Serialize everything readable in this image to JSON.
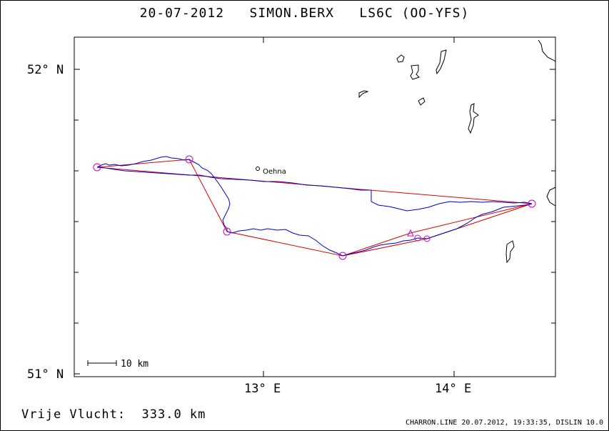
{
  "title": "20-07-2012   SIMON.BERX   LS6C (OO-YFS)",
  "axes": {
    "lat_labels": [
      "52° N",
      "51° N"
    ],
    "lon_labels": [
      "13° E",
      "14° E"
    ]
  },
  "place_label": "Oehna",
  "scale_bar_label": "10 km",
  "footer": {
    "flight_summary": "Vrije Vlucht:  333.0 km",
    "credit": "CHARRON.LINE 20.07.2012, 19:33:35, DISLIN 10.0"
  },
  "colors": {
    "track": "#0000cc",
    "task_line": "#dd0000",
    "turnpoint": "#cc00cc",
    "coast": "#000000"
  }
}
